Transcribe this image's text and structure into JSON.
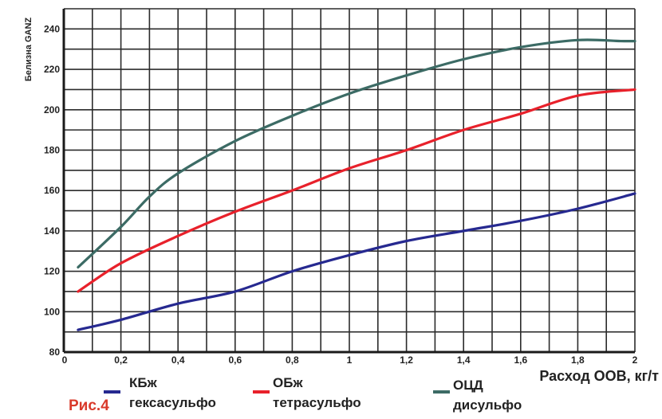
{
  "colors": {
    "background": "#ffffff",
    "grid": "#2b2b2b",
    "axis": "#1a1a1a",
    "figure_label": "#d93a2b"
  },
  "figure_label": "Рис.4",
  "chart_data": {
    "type": "line",
    "title": "",
    "xlabel": "Расход ООВ, кг/т",
    "ylabel": "Белизна GANZ",
    "xlim": [
      0,
      2
    ],
    "ylim": [
      80,
      250
    ],
    "grid": true,
    "legend_position": "bottom",
    "x_ticks": [
      0,
      0.2,
      0.4,
      0.6,
      0.8,
      1,
      1.2,
      1.4,
      1.6,
      1.8,
      2
    ],
    "x_tick_labels": [
      "0",
      "0,2",
      "0,4",
      "0,6",
      "0,8",
      "1",
      "1,2",
      "1,4",
      "1,6",
      "1,8",
      "2"
    ],
    "y_ticks": [
      80,
      100,
      120,
      140,
      160,
      180,
      200,
      220,
      240
    ],
    "y_tick_labels": [
      "80",
      "100",
      "120",
      "140",
      "160",
      "180",
      "200",
      "220",
      "240"
    ],
    "series": [
      {
        "name_line1": "КБж",
        "name_line2": "гексасульфо",
        "color": "#262990",
        "x": [
          0.05,
          0.2,
          0.4,
          0.6,
          0.8,
          1.0,
          1.2,
          1.4,
          1.6,
          1.8,
          2.0
        ],
        "y": [
          91,
          96,
          104,
          110,
          120,
          128,
          135,
          140,
          145,
          151,
          158.5
        ]
      },
      {
        "name_line1": "ОБж",
        "name_line2": "тетрасульфо",
        "color": "#e8212b",
        "x": [
          0.05,
          0.2,
          0.4,
          0.6,
          0.8,
          1.0,
          1.2,
          1.4,
          1.6,
          1.8,
          2.0
        ],
        "y": [
          110,
          124,
          137.5,
          149.5,
          160,
          171,
          180,
          190,
          198,
          207,
          210
        ]
      },
      {
        "name_line1": "ОЦД",
        "name_line2": "дисульфо",
        "color": "#3c6b65",
        "x": [
          0.05,
          0.2,
          0.3,
          0.4,
          0.6,
          0.8,
          1.0,
          1.2,
          1.4,
          1.6,
          1.8,
          1.95,
          2.0
        ],
        "y": [
          122,
          142,
          157,
          168.5,
          184.5,
          197,
          208,
          217,
          225,
          231,
          234.5,
          234,
          234
        ]
      }
    ]
  }
}
